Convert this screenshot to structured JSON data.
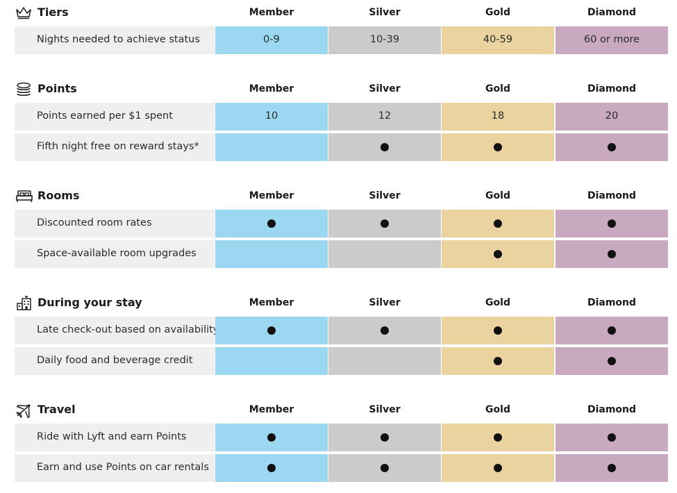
{
  "columns": [
    "Member",
    "Silver",
    "Gold",
    "Diamond"
  ],
  "sections": [
    {
      "title": "Tiers",
      "icon": "crown-icon",
      "rows": [
        {
          "label": "Nights needed to achieve status",
          "values": [
            "0-9",
            "10-39",
            "40-59",
            "60 or more"
          ]
        }
      ]
    },
    {
      "title": "Points",
      "icon": "coins-icon",
      "rows": [
        {
          "label": "Points earned per $1 spent",
          "values": [
            "10",
            "12",
            "18",
            "20"
          ]
        },
        {
          "label": "Fifth night free on reward stays*",
          "values": [
            false,
            true,
            true,
            true
          ]
        }
      ]
    },
    {
      "title": "Rooms",
      "icon": "bed-icon",
      "rows": [
        {
          "label": "Discounted room rates",
          "values": [
            true,
            true,
            true,
            true
          ]
        },
        {
          "label": "Space-available room upgrades",
          "values": [
            false,
            false,
            true,
            true
          ]
        }
      ]
    },
    {
      "title": "During your stay",
      "icon": "hotel-building-icon",
      "rows": [
        {
          "label": "Late check-out based on availability",
          "values": [
            true,
            true,
            true,
            true
          ]
        },
        {
          "label": "Daily food and beverage credit",
          "values": [
            false,
            false,
            true,
            true
          ]
        }
      ]
    },
    {
      "title": "Travel",
      "icon": "airplane-icon",
      "rows": [
        {
          "label": "Ride with Lyft and earn Points",
          "values": [
            true,
            true,
            true,
            true
          ]
        },
        {
          "label": "Earn and use Points on car rentals",
          "values": [
            true,
            true,
            true,
            true
          ]
        }
      ]
    }
  ],
  "colors": {
    "member": "#9bd7f1",
    "silver": "#cbcbcb",
    "gold": "#ead39f",
    "diamond": "#c8a9bf",
    "label_bg": "#efefef"
  }
}
